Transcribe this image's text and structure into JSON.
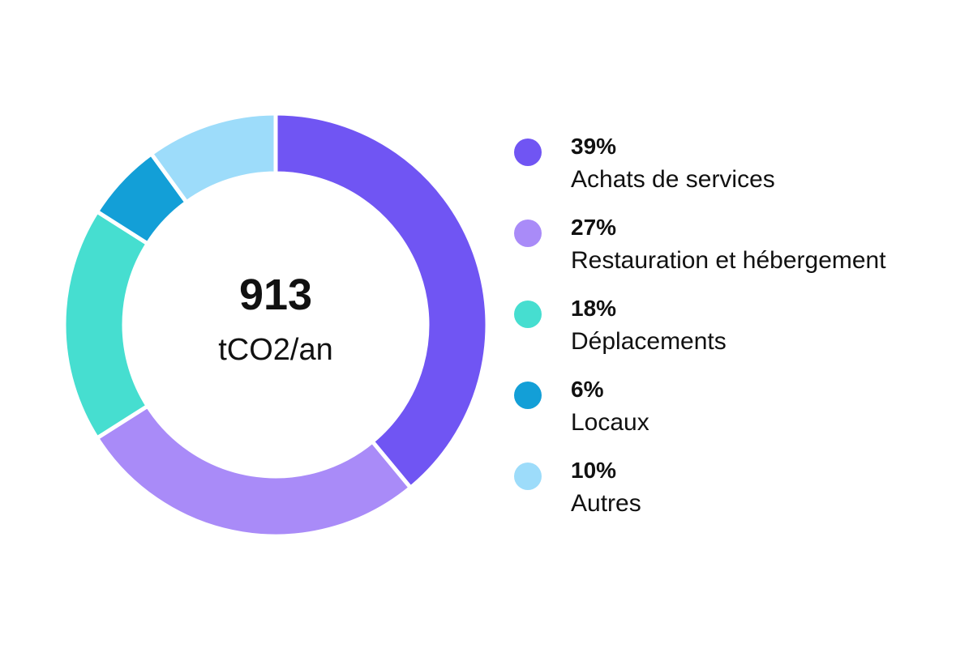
{
  "center": {
    "value": "913",
    "unit": "tCO2/an"
  },
  "chart_data": {
    "type": "pie",
    "variant": "donut",
    "total": 913,
    "total_unit": "tCO2/an",
    "categories": [
      "Achats de services",
      "Restauration et hébergement",
      "Déplacements",
      "Locaux",
      "Autres"
    ],
    "values": [
      39,
      27,
      18,
      6,
      10
    ],
    "value_labels": [
      "39%",
      "27%",
      "18%",
      "6%",
      "10%"
    ],
    "colors": [
      "#7055f3",
      "#a98bf8",
      "#46ded0",
      "#139fd7",
      "#9ddcfa"
    ],
    "legend_position": "right"
  }
}
